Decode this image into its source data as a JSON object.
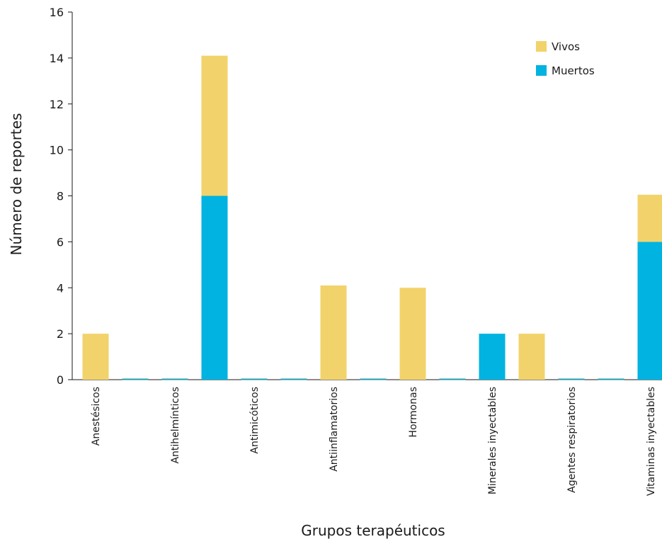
{
  "chart_data": {
    "type": "bar",
    "stacked": true,
    "title": "",
    "xlabel": "Grupos terapéuticos",
    "ylabel": "Número de reportes",
    "ylim": [
      0,
      16
    ],
    "yticks": [
      0,
      2,
      4,
      6,
      8,
      10,
      12,
      14,
      16
    ],
    "grid": false,
    "legend": "top-right",
    "categories": [
      "Anestésicos",
      "",
      "Antihelmínticos",
      "",
      "Antimicóticos",
      "",
      "Antiinflamatorios",
      "",
      "Hormonas",
      "",
      "Minerales inyectables",
      "",
      "Agentes respiratorios",
      "",
      "Vitaminas inyectables"
    ],
    "series": [
      {
        "name": "Muertos",
        "color": "#00b3e0",
        "values": [
          0,
          0,
          0,
          8,
          0,
          0,
          0,
          0,
          0,
          0,
          2,
          0,
          0,
          0,
          6
        ]
      },
      {
        "name": "Vivos",
        "color": "#f2d36b",
        "values": [
          2,
          0,
          0,
          6.1,
          0,
          0,
          4.1,
          0,
          4,
          0,
          0,
          2,
          0,
          0,
          2.05
        ]
      }
    ],
    "legend_order": [
      "Vivos",
      "Muertos"
    ],
    "zero_line_color": "#1f9aa8"
  }
}
